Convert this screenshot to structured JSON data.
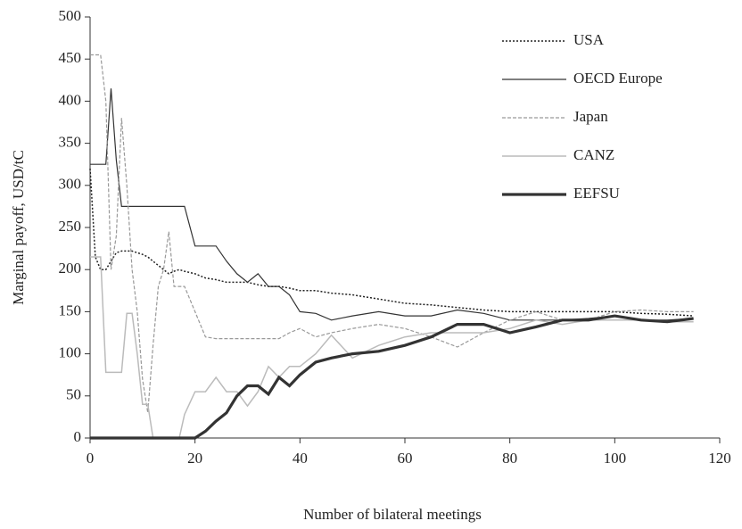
{
  "chart_data": {
    "type": "line",
    "xlabel": "Number of bilateral meetings",
    "ylabel": "Marginal payoff, USD/tC",
    "x": [
      0,
      1,
      2,
      3,
      4,
      5,
      6,
      7,
      8,
      9,
      10,
      11,
      12,
      13,
      14,
      15,
      16,
      17,
      18,
      20,
      22,
      24,
      26,
      28,
      30,
      32,
      34,
      36,
      38,
      40,
      43,
      46,
      50,
      55,
      60,
      65,
      70,
      75,
      80,
      85,
      90,
      95,
      100,
      105,
      110,
      115
    ],
    "series": [
      {
        "name": "USA",
        "color": "#222222",
        "dash": "2,2",
        "width": 1.5,
        "values": [
          320,
          215,
          200,
          200,
          210,
          220,
          222,
          222,
          222,
          220,
          218,
          215,
          210,
          205,
          200,
          195,
          198,
          200,
          198,
          195,
          190,
          188,
          185,
          185,
          185,
          182,
          180,
          180,
          178,
          175,
          175,
          172,
          170,
          165,
          160,
          158,
          155,
          152,
          150,
          150,
          150,
          150,
          150,
          148,
          147,
          145
        ]
      },
      {
        "name": "OECD Europe",
        "color": "#333333",
        "dash": "none",
        "width": 1.2,
        "values": [
          325,
          325,
          325,
          325,
          415,
          330,
          275,
          275,
          275,
          275,
          275,
          275,
          275,
          275,
          275,
          275,
          275,
          275,
          275,
          228,
          228,
          228,
          210,
          195,
          185,
          195,
          180,
          180,
          170,
          150,
          148,
          140,
          145,
          150,
          145,
          145,
          152,
          148,
          140,
          140,
          140,
          142,
          145,
          140,
          140,
          142
        ]
      },
      {
        "name": "Japan",
        "color": "#999999",
        "dash": "4,2",
        "width": 1.2,
        "values": [
          455,
          455,
          455,
          400,
          200,
          240,
          380,
          300,
          200,
          150,
          70,
          30,
          110,
          180,
          200,
          245,
          180,
          180,
          180,
          150,
          120,
          118,
          118,
          118,
          118,
          118,
          118,
          118,
          125,
          130,
          120,
          125,
          130,
          135,
          130,
          120,
          108,
          125,
          140,
          150,
          140,
          140,
          150,
          152,
          150,
          150
        ]
      },
      {
        "name": "CANZ",
        "color": "#bbbbbb",
        "dash": "none",
        "width": 1.5,
        "values": [
          215,
          215,
          215,
          78,
          78,
          78,
          78,
          148,
          148,
          100,
          40,
          40,
          0,
          0,
          0,
          0,
          0,
          0,
          28,
          55,
          55,
          72,
          55,
          55,
          38,
          55,
          85,
          72,
          85,
          85,
          100,
          122,
          95,
          110,
          120,
          125,
          125,
          125,
          130,
          140,
          135,
          140,
          140,
          140,
          138,
          138
        ]
      },
      {
        "name": "EEFSU",
        "color": "#333333",
        "dash": "none",
        "width": 3.2,
        "values": [
          0,
          0,
          0,
          0,
          0,
          0,
          0,
          0,
          0,
          0,
          0,
          0,
          0,
          0,
          0,
          0,
          0,
          0,
          0,
          0,
          8,
          20,
          30,
          50,
          62,
          62,
          52,
          72,
          62,
          75,
          90,
          95,
          100,
          103,
          110,
          120,
          135,
          135,
          125,
          132,
          140,
          140,
          145,
          140,
          138,
          142
        ]
      }
    ],
    "xlim": [
      0,
      120
    ],
    "xticks": [
      0,
      20,
      40,
      60,
      80,
      100,
      120
    ],
    "ylim": [
      0,
      500
    ],
    "yticks": [
      0,
      50,
      100,
      150,
      200,
      250,
      300,
      350,
      400,
      450,
      500
    ],
    "legend": "top-right"
  }
}
